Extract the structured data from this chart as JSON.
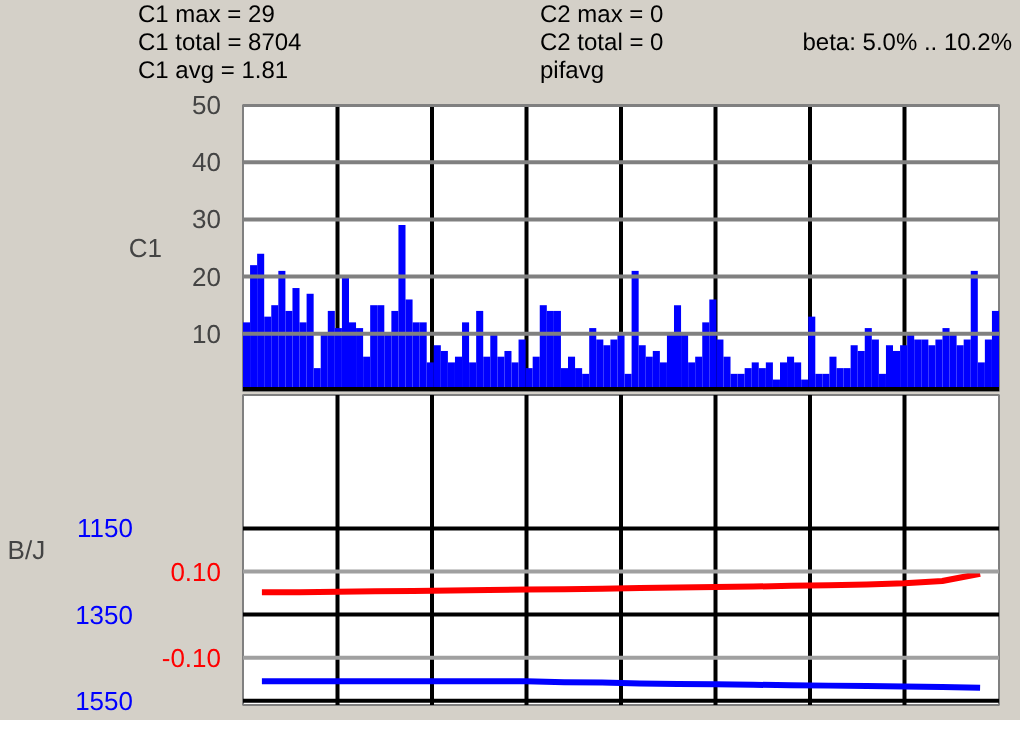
{
  "chart_data": [
    {
      "type": "bar",
      "ylabel": "C1",
      "ylim": [
        0,
        50
      ],
      "yticks": [
        10,
        20,
        30,
        40,
        50
      ],
      "grid": true,
      "annotations": [
        "C1 max = 29",
        "C1 total = 8704",
        "C1 avg = 1.81",
        "C2 max = 0",
        "C2 total = 0",
        "pifavg",
        "beta: 5.0% .. 10.2%"
      ],
      "categories": [
        null,
        null,
        null,
        null,
        null,
        null,
        null,
        null,
        null,
        null,
        null,
        null,
        null,
        null,
        null,
        null,
        null,
        null,
        null,
        null,
        null,
        null,
        null,
        null,
        null,
        null,
        null,
        null,
        null,
        null,
        null,
        null,
        null,
        null,
        null,
        null,
        null,
        null,
        null,
        null,
        null,
        null,
        null,
        null,
        null,
        null,
        null,
        null,
        null,
        null,
        null,
        null,
        null,
        null,
        null,
        null,
        null,
        null,
        null,
        null,
        null,
        null,
        null,
        null,
        null,
        null,
        null,
        null,
        null,
        null,
        null,
        null,
        null,
        null,
        null,
        null,
        null,
        null,
        null,
        null,
        null,
        null,
        null,
        null,
        null,
        null,
        null,
        null,
        null,
        null,
        null,
        null,
        null,
        null,
        null,
        null,
        null,
        null,
        null,
        null,
        null,
        null,
        null,
        null,
        null,
        null,
        null
      ],
      "series": [
        {
          "color": "#0000ff",
          "values": [
            12,
            22,
            24,
            13,
            15,
            21,
            14,
            18,
            12,
            17,
            4,
            10,
            14,
            11,
            20,
            12,
            11,
            6,
            15,
            15,
            10,
            14,
            29,
            16,
            12,
            12,
            5,
            8,
            7,
            5,
            6,
            12,
            5,
            14,
            6,
            10,
            6,
            7,
            5,
            9,
            4,
            6,
            15,
            14,
            14,
            4,
            6,
            4,
            3,
            11,
            9,
            8,
            9,
            10,
            3,
            21,
            8,
            6,
            7,
            5,
            10,
            15,
            10,
            5,
            6,
            12,
            16,
            9,
            6,
            3,
            3,
            4,
            5,
            4,
            5,
            2,
            5,
            6,
            5,
            2,
            13,
            3,
            3,
            6,
            4,
            4,
            8,
            7,
            11,
            9,
            3,
            8,
            7,
            8,
            10,
            9,
            9,
            8,
            9,
            11,
            10,
            8,
            9,
            21,
            5,
            9,
            14
          ]
        }
      ]
    },
    {
      "type": "line",
      "ylabel": "B/J",
      "ylim": [
        1560,
        840
      ],
      "yticks": [
        1150,
        1350,
        1550
      ],
      "y2lim": [
        -0.21,
        0.51
      ],
      "y2ticks": [
        {
          "value": 0.1,
          "label": "0.10"
        },
        {
          "value": -0.1,
          "label": "-0.10"
        }
      ],
      "grid": true,
      "categories": [
        null,
        null,
        null,
        null,
        null,
        null,
        null,
        null,
        null,
        null,
        null,
        null,
        null,
        null,
        null,
        null,
        null,
        null,
        null,
        null
      ],
      "series": [
        {
          "color": "#ff0000",
          "axis": "y2",
          "values": [
            0.052,
            0.052,
            0.053,
            0.054,
            0.055,
            0.056,
            0.057,
            0.058,
            0.059,
            0.06,
            0.062,
            0.063,
            0.064,
            0.065,
            0.067,
            0.068,
            0.07,
            0.073,
            0.078,
            0.095
          ]
        },
        {
          "color": "#0000ff",
          "values": [
            1505,
            1505,
            1505,
            1505,
            1505,
            1505,
            1505,
            1505,
            1507,
            1508,
            1510,
            1511,
            1512,
            1513,
            1514,
            1515,
            1516,
            1517,
            1518,
            1520
          ]
        }
      ]
    }
  ]
}
